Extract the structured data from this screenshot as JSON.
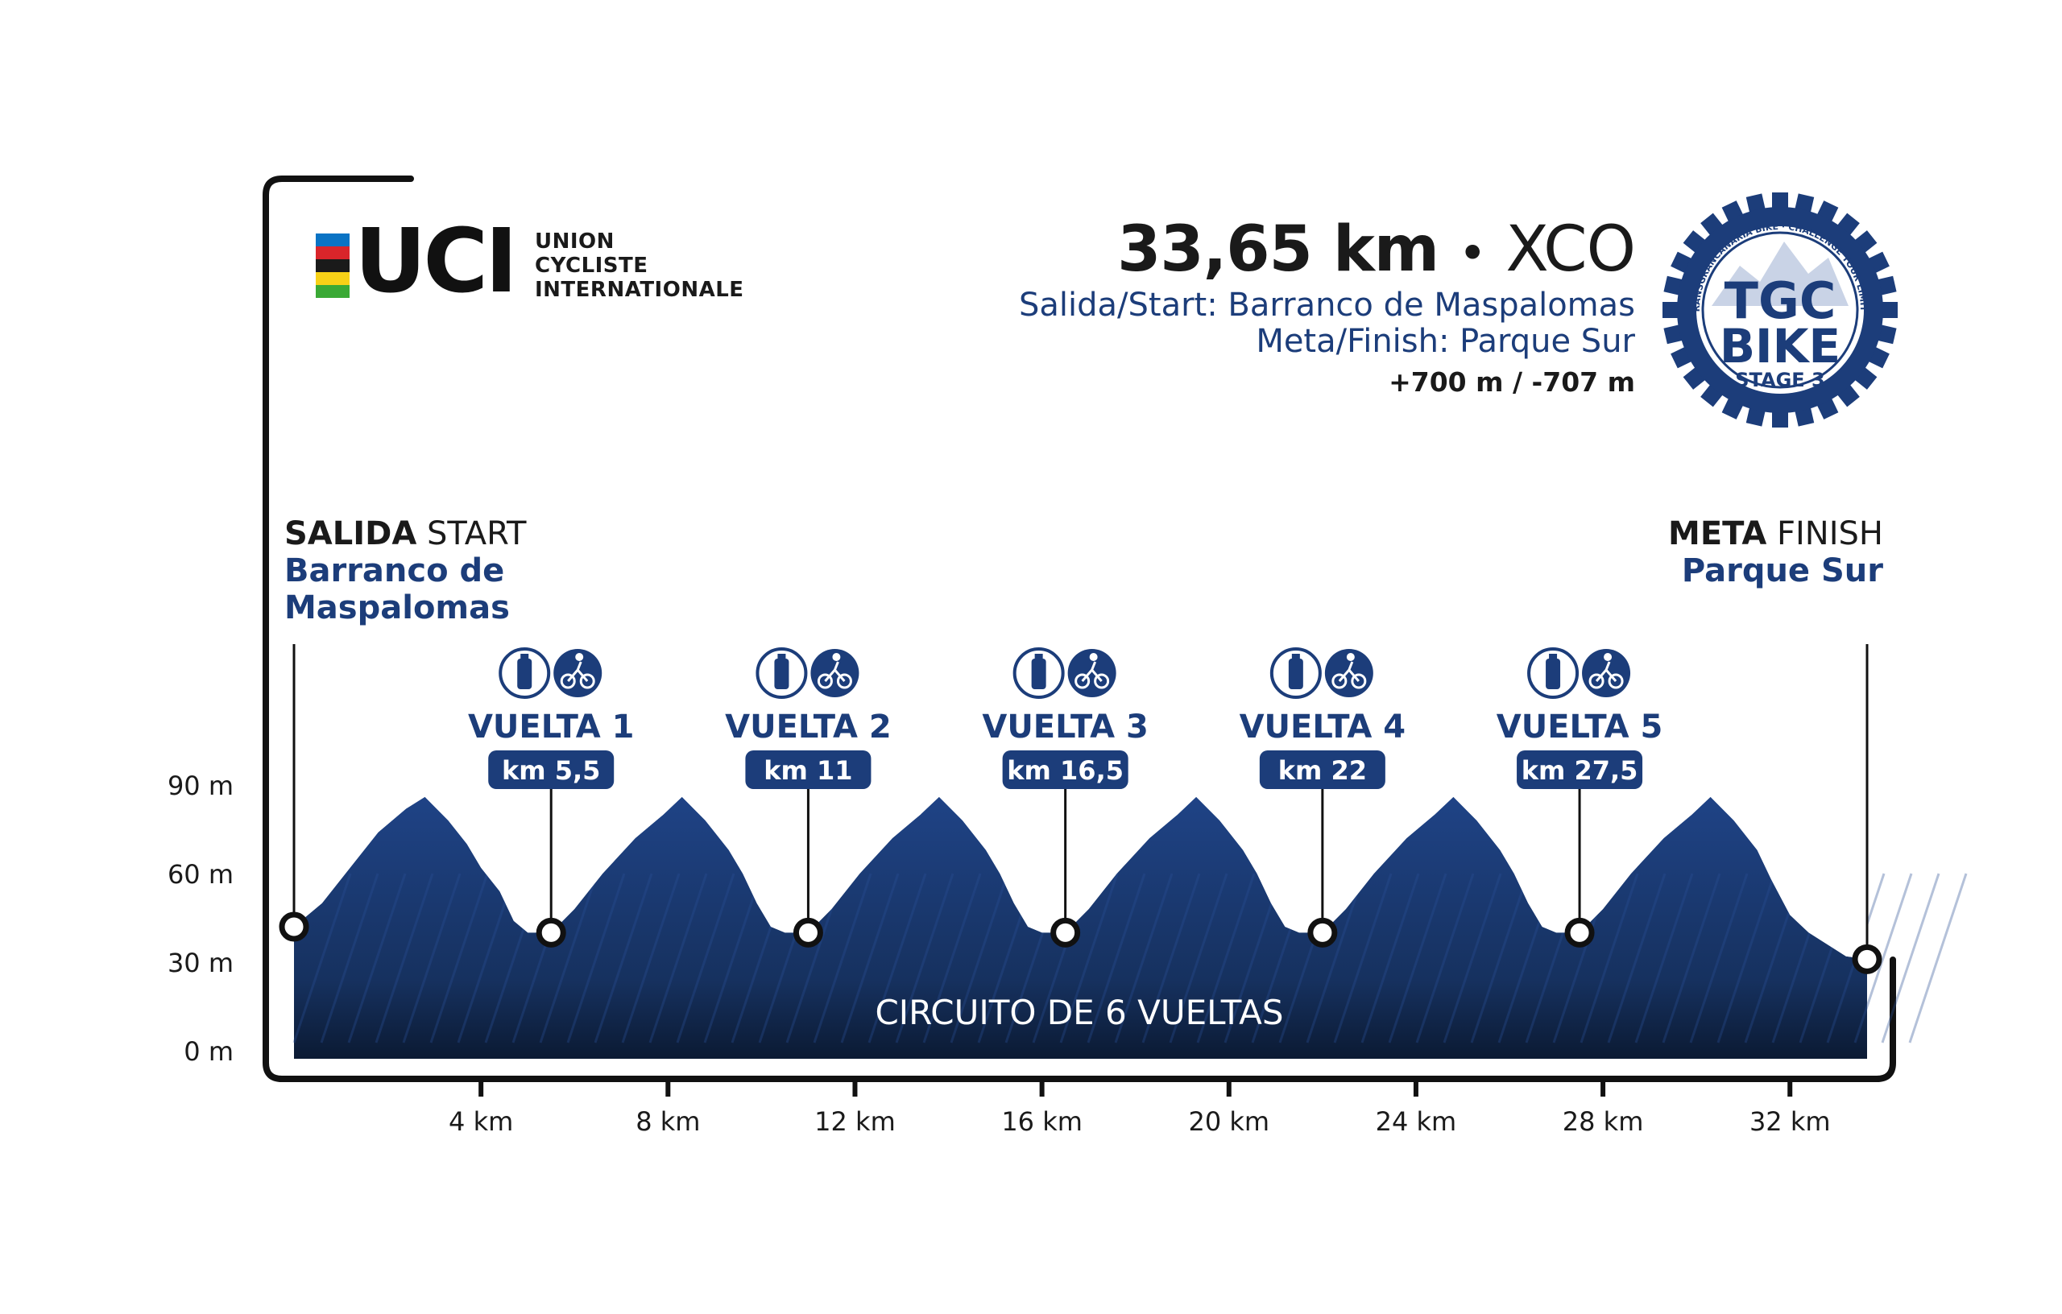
{
  "header": {
    "distance": "33,65 km",
    "separator": "•",
    "race_type": "XCO",
    "start": "Salida/Start: Barranco de Maspalomas",
    "finish": "Meta/Finish: Parque Sur",
    "elevation": "+700 m / -707 m"
  },
  "uci_logo": {
    "letters": "UCI",
    "lines": [
      "UNION",
      "CYCLISTE",
      "INTERNATIONALE"
    ],
    "stripe_colors": [
      "#0a73c4",
      "#d9252a",
      "#1a1a1a",
      "#f7d117",
      "#3aa935"
    ]
  },
  "event_logo": {
    "line1": "TGC",
    "line2": "BIKE",
    "line3": "STAGE 3",
    "ring_text": "TRANSGRANCANARIA BIKE · CHALLENGE YOUR LIMITS",
    "color": "#1c3d7a"
  },
  "start_label": {
    "bold": "SALIDA",
    "normal": "START",
    "place_line1": "Barranco de",
    "place_line2": "Maspalomas"
  },
  "finish_label": {
    "bold": "META",
    "normal": "FINISH",
    "place": "Parque Sur"
  },
  "colors": {
    "profile": "#1c3d7a",
    "profile_dark": "#0b1a33",
    "frame": "#111111"
  },
  "chart_data": {
    "type": "area",
    "title": "",
    "xlabel": "",
    "ylabel": "",
    "x_unit": "km",
    "xlim": [
      0,
      33.65
    ],
    "ylim": [
      0,
      90
    ],
    "x_ticks": [
      4,
      8,
      12,
      16,
      20,
      24,
      28,
      32
    ],
    "x_tick_labels": [
      "4 km",
      "8 km",
      "12 km",
      "16 km",
      "20 km",
      "24 km",
      "28 km",
      "32 km"
    ],
    "y_ticks": [
      0,
      30,
      60,
      90
    ],
    "y_tick_labels": [
      "0 m",
      "30 m",
      "60 m",
      "90 m"
    ],
    "annotation": "CIRCUITO DE 6 VUELTAS",
    "profile": {
      "x": [
        0,
        0.6,
        1.2,
        1.8,
        2.4,
        2.8,
        3.3,
        3.7,
        4.0,
        4.4,
        4.7,
        5.0,
        5.5,
        6.0,
        6.6,
        7.3,
        7.9,
        8.3,
        8.8,
        9.3,
        9.6,
        9.9,
        10.2,
        10.5,
        11.0,
        11.5,
        12.1,
        12.8,
        13.4,
        13.8,
        14.3,
        14.8,
        15.1,
        15.4,
        15.7,
        16.0,
        16.5,
        17.0,
        17.6,
        18.3,
        18.9,
        19.3,
        19.8,
        20.3,
        20.6,
        20.9,
        21.2,
        21.5,
        22.0,
        22.5,
        23.1,
        23.8,
        24.4,
        24.8,
        25.3,
        25.8,
        26.1,
        26.4,
        26.7,
        27.0,
        27.5,
        28.0,
        28.6,
        29.3,
        29.9,
        30.3,
        30.8,
        31.3,
        31.6,
        32.0,
        32.4,
        32.8,
        33.2,
        33.65
      ],
      "y": [
        42,
        50,
        62,
        74,
        82,
        86,
        78,
        70,
        62,
        54,
        44,
        40,
        40,
        48,
        60,
        72,
        80,
        86,
        78,
        68,
        60,
        50,
        42,
        40,
        40,
        48,
        60,
        72,
        80,
        86,
        78,
        68,
        60,
        50,
        42,
        40,
        40,
        48,
        60,
        72,
        80,
        86,
        78,
        68,
        60,
        50,
        42,
        40,
        40,
        48,
        60,
        72,
        80,
        86,
        78,
        68,
        60,
        50,
        42,
        40,
        40,
        48,
        60,
        72,
        80,
        86,
        78,
        68,
        58,
        46,
        40,
        36,
        32,
        31
      ]
    },
    "markers": [
      {
        "km": 0,
        "elev": 42,
        "kind": "start"
      },
      {
        "km": 5.5,
        "elev": 40,
        "label": "VUELTA 1",
        "km_label": "km 5,5",
        "icons": [
          "bottle-icon",
          "bike-icon"
        ]
      },
      {
        "km": 11,
        "elev": 40,
        "label": "VUELTA 2",
        "km_label": "km 11",
        "icons": [
          "bottle-icon",
          "bike-icon"
        ]
      },
      {
        "km": 16.5,
        "elev": 40,
        "label": "VUELTA 3",
        "km_label": "km 16,5",
        "icons": [
          "bottle-icon",
          "bike-icon"
        ]
      },
      {
        "km": 22,
        "elev": 40,
        "label": "VUELTA 4",
        "km_label": "km 22",
        "icons": [
          "bottle-icon",
          "bike-icon"
        ]
      },
      {
        "km": 27.5,
        "elev": 40,
        "label": "VUELTA 5",
        "km_label": "km 27,5",
        "icons": [
          "bottle-icon",
          "bike-icon"
        ]
      },
      {
        "km": 33.65,
        "elev": 31,
        "kind": "finish"
      }
    ]
  }
}
